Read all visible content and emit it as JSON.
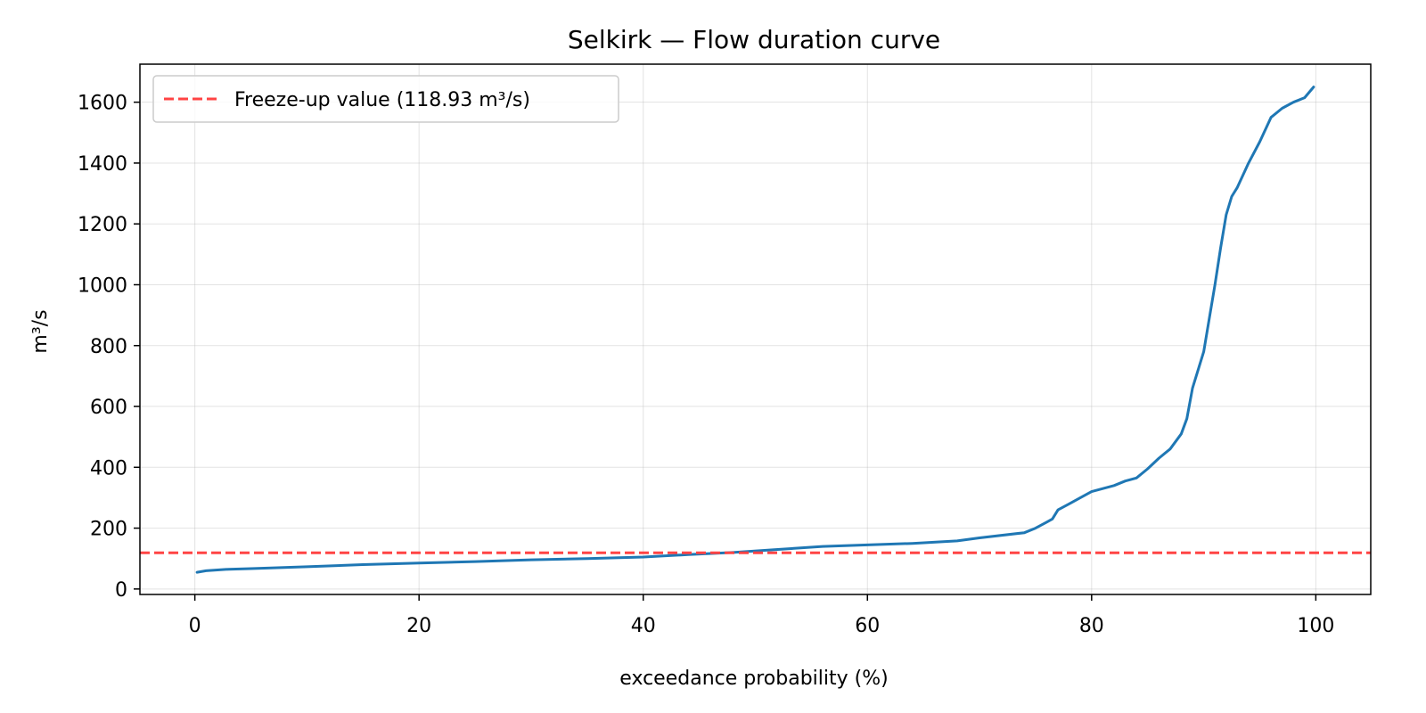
{
  "chart_data": {
    "type": "line",
    "title": "Selkirk — Flow duration curve",
    "xlabel": "exceedance probability (%)",
    "ylabel": "m³/s",
    "xlim": [
      -4.9,
      104.9
    ],
    "ylim": [
      -18,
      1725
    ],
    "xticks": [
      0,
      20,
      40,
      60,
      80,
      100
    ],
    "yticks": [
      0,
      200,
      400,
      600,
      800,
      1000,
      1200,
      1400,
      1600
    ],
    "grid": true,
    "legend_position": "top-left",
    "colors": {
      "series": "#1f77b4",
      "reference": "#ff4444"
    },
    "series": [
      {
        "x": [
          0.2,
          1,
          3,
          5,
          10,
          15,
          20,
          25,
          30,
          35,
          40,
          44,
          48,
          52,
          56,
          60,
          64,
          68,
          70,
          74,
          75,
          76,
          76.5,
          77,
          78,
          79,
          80,
          82,
          83,
          84,
          85,
          86,
          87,
          88,
          88.5,
          89,
          90,
          90.5,
          91,
          91.5,
          92,
          92.5,
          93,
          94,
          95,
          96,
          97,
          98,
          99,
          99.8
        ],
        "y": [
          55,
          60,
          65,
          67,
          73,
          80,
          85,
          90,
          96,
          100,
          105,
          113,
          120,
          130,
          140,
          145,
          150,
          158,
          168,
          185,
          200,
          220,
          230,
          260,
          280,
          300,
          320,
          340,
          355,
          365,
          395,
          430,
          460,
          510,
          560,
          660,
          780,
          890,
          1000,
          1120,
          1230,
          1290,
          1320,
          1400,
          1470,
          1550,
          1580,
          1600,
          1615,
          1650
        ]
      }
    ],
    "reference_lines": [
      {
        "label": "Freeze-up value (118.93 m³/s)",
        "y": 118.93
      }
    ]
  }
}
